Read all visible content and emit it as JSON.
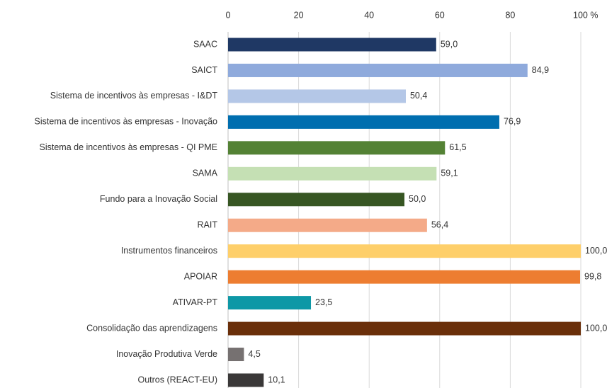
{
  "chart_data": {
    "type": "hbar",
    "categories": [
      "SAAC",
      "SAICT",
      "Sistema de incentivos às empresas - I&DT",
      "Sistema de incentivos às empresas - Inovação",
      "Sistema de incentivos às empresas - QI PME",
      "SAMA",
      "Fundo para a Inovação Social",
      "RAIT",
      "Instrumentos financeiros",
      "APOIAR",
      "ATIVAR-PT",
      "Consolidação das aprendizagens",
      "Inovação Produtiva Verde",
      "Outros (REACT-EU)"
    ],
    "values": [
      59.0,
      84.9,
      50.4,
      76.9,
      61.5,
      59.1,
      50.0,
      56.4,
      100.0,
      99.8,
      23.5,
      100.0,
      4.5,
      10.1
    ],
    "value_labels": [
      "59,0",
      "84,9",
      "50,4",
      "76,9",
      "61,5",
      "59,1",
      "50,0",
      "56,4",
      "100,0",
      "99,8",
      "23,5",
      "100,0",
      "4,5",
      "10,1"
    ],
    "colors": [
      "#1f3864",
      "#8faadc",
      "#b4c7e7",
      "#006eaf",
      "#548235",
      "#c5e0b4",
      "#375623",
      "#f4aa88",
      "#fecf6a",
      "#ed7d31",
      "#0e98a6",
      "#6a2f0a",
      "#767171",
      "#3a3838"
    ],
    "xlim": [
      0,
      100
    ],
    "xticks": [
      0,
      20,
      40,
      60,
      80,
      {
        "value": 100,
        "label": "100 %"
      }
    ],
    "grid": true
  }
}
